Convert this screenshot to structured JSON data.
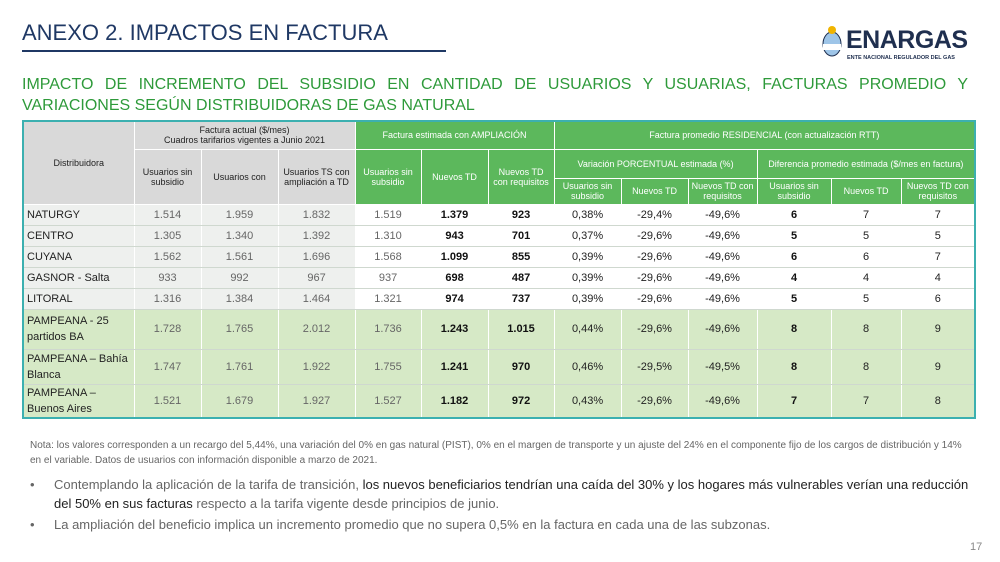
{
  "header": {
    "title": "ANEXO 2. IMPACTOS EN FACTURA",
    "logo_name": "ENARGAS",
    "logo_subtitle": "ENTE NACIONAL REGULADOR DEL GAS"
  },
  "subtitle": "IMPACTO DE INCREMENTO DEL SUBSIDIO EN CANTIDAD DE USUARIOS Y USUARIAS, FACTURAS PROMEDIO Y VARIACIONES SEGÚN DISTRIBUIDORAS DE GAS NATURAL",
  "table": {
    "col_distribuidora": "Distribuidora",
    "group_actual": [
      "Factura actual ($/mes)",
      "Cuadros tarifarios vigentes a Junio 2021"
    ],
    "group_ampliacion": "Factura estimada con AMPLIACIÓN",
    "group_promedio": "Factura promedio RESIDENCIAL (con actualización RTT)",
    "sub_actual": [
      "Usuarios sin subsidio",
      "Usuarios con",
      "Usuarios TS con ampliación a TD"
    ],
    "sub_ampliacion": [
      "Usuarios sin subsidio",
      "Nuevos TD",
      "Nuevos TD con requisitos"
    ],
    "sub_variacion": "Variación PORCENTUAL estimada (%)",
    "sub_diferencia": "Diferencia promedio estimada ($/mes en factura)",
    "sub_variacion_cols": [
      "Usuarios sin subsidio",
      "Nuevos TD",
      "Nuevos TD con requisitos"
    ],
    "sub_diferencia_cols": [
      "Usuarios sin subsidio",
      "Nuevos TD",
      "Nuevos TD con requisitos"
    ],
    "rows": [
      [
        "NATURGY",
        "1.514",
        "1.959",
        "1.832",
        "1.519",
        "1.379",
        "923",
        "0,38%",
        "-29,4%",
        "-49,6%",
        "6",
        "7",
        "7"
      ],
      [
        "CENTRO",
        "1.305",
        "1.340",
        "1.392",
        "1.310",
        "943",
        "701",
        "0,37%",
        "-29,6%",
        "-49,6%",
        "5",
        "5",
        "5"
      ],
      [
        "CUYANA",
        "1.562",
        "1.561",
        "1.696",
        "1.568",
        "1.099",
        "855",
        "0,39%",
        "-29,6%",
        "-49,6%",
        "6",
        "6",
        "7"
      ],
      [
        "GASNOR - Salta",
        "933",
        "992",
        "967",
        "937",
        "698",
        "487",
        "0,39%",
        "-29,6%",
        "-49,6%",
        "4",
        "4",
        "4"
      ],
      [
        "LITORAL",
        "1.316",
        "1.384",
        "1.464",
        "1.321",
        "974",
        "737",
        "0,39%",
        "-29,6%",
        "-49,6%",
        "5",
        "5",
        "6"
      ],
      [
        "PAMPEANA - 25 partidos BA",
        "1.728",
        "1.765",
        "2.012",
        "1.736",
        "1.243",
        "1.015",
        "0,44%",
        "-29,6%",
        "-49,6%",
        "8",
        "8",
        "9"
      ],
      [
        "PAMPEANA – Bahía Blanca",
        "1.747",
        "1.761",
        "1.922",
        "1.755",
        "1.241",
        "970",
        "0,46%",
        "-29,5%",
        "-49,5%",
        "8",
        "8",
        "9"
      ],
      [
        "PAMPEANA – Buenos Aires",
        "1.521",
        "1.679",
        "1.927",
        "1.527",
        "1.182",
        "972",
        "0,43%",
        "-29,6%",
        "-49,6%",
        "7",
        "7",
        "8"
      ]
    ]
  },
  "note": "Nota: los valores corresponden a un recargo del 5,44%, una variación del 0% en gas natural (PIST), 0% en el margen de transporte y un ajuste del 24% en el componente fijo de los cargos de distribución y 14% en el variable. Datos de usuarios con información disponible a marzo de 2021.",
  "bullets": [
    [
      {
        "text": "Contemplando la aplicación de la tarifa de transición, ",
        "emph": false
      },
      {
        "text": "los nuevos beneficiarios tendrían una caída del 30% y los hogares más vulnerables verían una reducción del 50% en sus facturas",
        "emph": true
      },
      {
        "text": " respecto a la tarifa vigente desde principios de junio.",
        "emph": false
      }
    ],
    [
      {
        "text": "La ampliación del beneficio implica un incremento promedio que no supera 0,5% en la factura en cada una de las subzonas.",
        "emph": false
      }
    ]
  ],
  "page_number": "17"
}
